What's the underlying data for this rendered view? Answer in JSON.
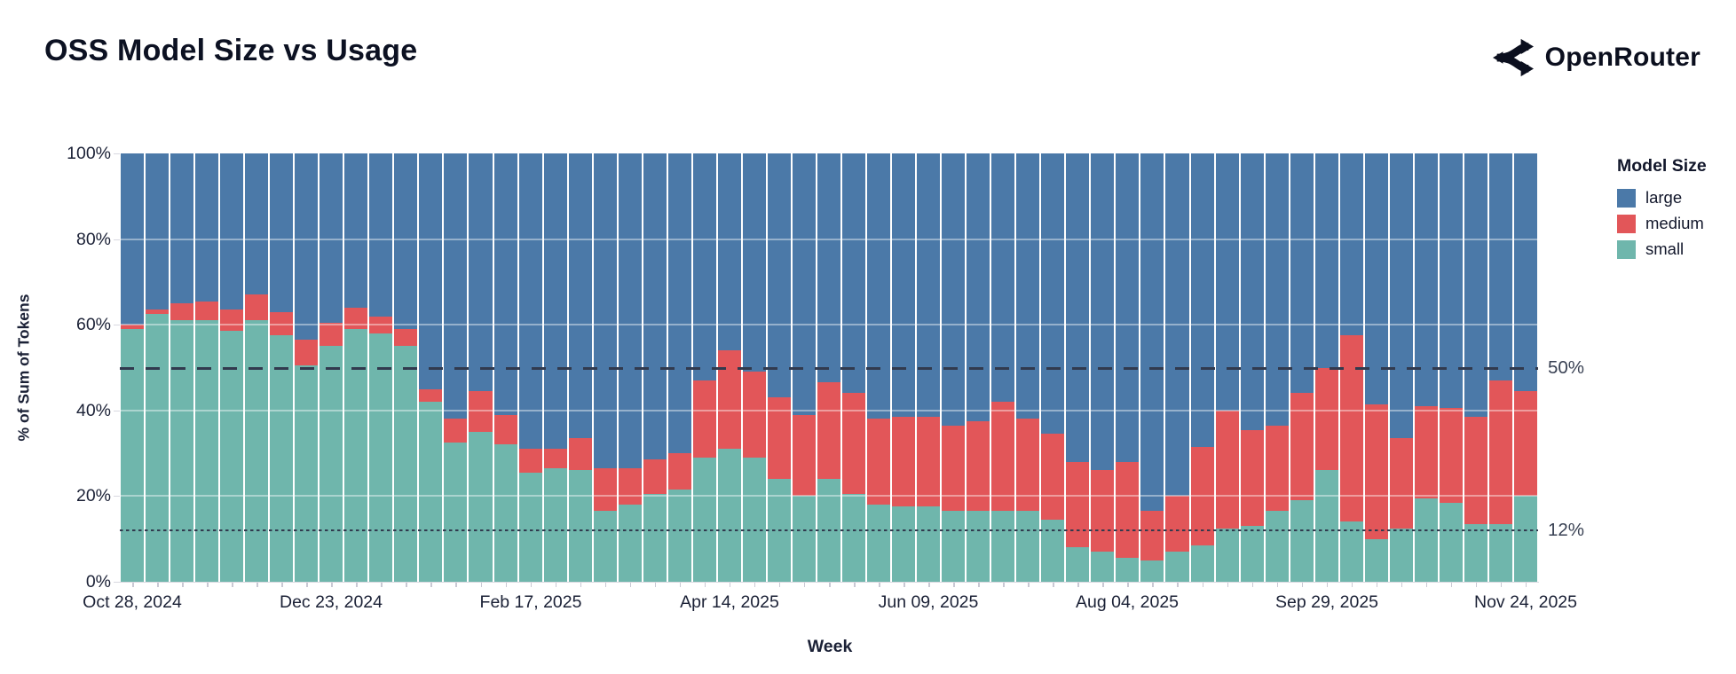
{
  "header": {
    "title": "OSS Model Size vs Usage",
    "brand": "OpenRouter"
  },
  "chart_data": {
    "type": "bar",
    "stacked": true,
    "normalized_percent": true,
    "title": "OSS Model Size vs Usage",
    "xlabel": "Week",
    "ylabel": "% of Sum of Tokens",
    "ylim": [
      0,
      100
    ],
    "y_tick_labels": [
      "0%",
      "20%",
      "40%",
      "60%",
      "80%",
      "100%"
    ],
    "gridlines_percent": [
      20,
      40,
      60,
      80
    ],
    "n_bars": 57,
    "x_tick_labels": [
      {
        "index": 0,
        "label": "Oct 28, 2024"
      },
      {
        "index": 8,
        "label": "Dec 23, 2024"
      },
      {
        "index": 16,
        "label": "Feb 17, 2025"
      },
      {
        "index": 24,
        "label": "Apr 14, 2025"
      },
      {
        "index": 32,
        "label": "Jun 09, 2025"
      },
      {
        "index": 40,
        "label": "Aug 04, 2025"
      },
      {
        "index": 48,
        "label": "Sep 29, 2025"
      },
      {
        "index": 56,
        "label": "Nov 24, 2025"
      }
    ],
    "reference_lines": [
      {
        "label": "50%",
        "value": 50,
        "style": "dashed"
      },
      {
        "label": "12%",
        "value": 12,
        "style": "dotted"
      }
    ],
    "legend": {
      "title": "Model Size",
      "position": "right",
      "entries": [
        {
          "label": "large",
          "color": "#4b79a8"
        },
        {
          "label": "medium",
          "color": "#e25659"
        },
        {
          "label": "small",
          "color": "#6fb6ac"
        }
      ]
    },
    "series": [
      {
        "name": "small",
        "color": "#6fb6ac",
        "values": [
          59,
          62.5,
          61,
          61,
          58.5,
          61,
          57.5,
          50.5,
          55,
          59,
          58,
          55,
          42,
          32.5,
          35,
          32,
          25.5,
          26.5,
          26,
          16.5,
          18,
          20.5,
          21.5,
          29,
          31,
          29,
          24,
          20,
          24,
          20.5,
          18,
          17.5,
          17.5,
          16.5,
          16.5,
          16.5,
          16.5,
          14.5,
          8,
          7,
          5.5,
          5,
          7,
          8.5,
          12.5,
          13,
          16.5,
          19,
          26,
          14,
          10,
          12.5,
          19.5,
          18.5,
          13.5,
          13.5,
          20
        ]
      },
      {
        "name": "medium",
        "color": "#e25659",
        "values": [
          1,
          1,
          4,
          4.5,
          5,
          6,
          5.5,
          6,
          5.5,
          5,
          4,
          4,
          3,
          5.5,
          9.5,
          7,
          5.5,
          4.5,
          7.5,
          10,
          8.5,
          8,
          8.5,
          18,
          23,
          20,
          19,
          19,
          22.5,
          23.5,
          20,
          21,
          21,
          20,
          21,
          25.5,
          21.5,
          20,
          20,
          19,
          22.5,
          11.5,
          13,
          23,
          27.5,
          22.5,
          20,
          25,
          24,
          43.5,
          31.5,
          21,
          21.5,
          22,
          25,
          33.5,
          24.5
        ]
      },
      {
        "name": "large",
        "color": "#4b79a8",
        "values": [
          40,
          36.5,
          35,
          34.5,
          36.5,
          33,
          37,
          43.5,
          39.5,
          36,
          38,
          41,
          55,
          62,
          55.5,
          61,
          69,
          69,
          66.5,
          73.5,
          73.5,
          71.5,
          70,
          53,
          46,
          51,
          57,
          61,
          53.5,
          56,
          62,
          61.5,
          61.5,
          63.5,
          62.5,
          58,
          62,
          65.5,
          72,
          74,
          72,
          83.5,
          80,
          68.5,
          60,
          64.5,
          63.5,
          56,
          50,
          42.5,
          58.5,
          66.5,
          59,
          59.5,
          61.5,
          53,
          55.5
        ]
      }
    ]
  }
}
